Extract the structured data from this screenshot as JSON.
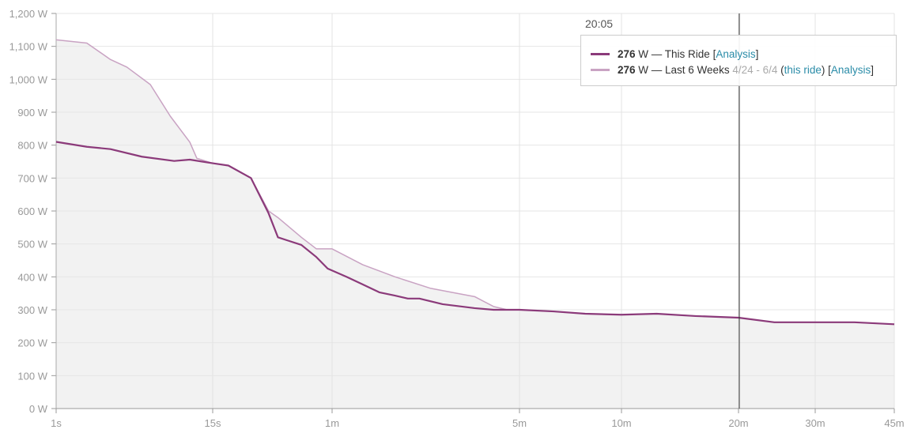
{
  "chart_data": {
    "type": "line",
    "x_scale": "log-ish (time)",
    "x_ticks": [
      {
        "label": "1s",
        "t": 1
      },
      {
        "label": "15s",
        "t": 15
      },
      {
        "label": "1m",
        "t": 60
      },
      {
        "label": "5m",
        "t": 300
      },
      {
        "label": "10m",
        "t": 600
      },
      {
        "label": "20m",
        "t": 1200
      },
      {
        "label": "30m",
        "t": 1800
      },
      {
        "label": "45m",
        "t": 2700
      }
    ],
    "y_ticks": [
      {
        "label": "0 W",
        "v": 0
      },
      {
        "label": "100 W",
        "v": 100
      },
      {
        "label": "200 W",
        "v": 200
      },
      {
        "label": "300 W",
        "v": 300
      },
      {
        "label": "400 W",
        "v": 400
      },
      {
        "label": "500 W",
        "v": 500
      },
      {
        "label": "600 W",
        "v": 600
      },
      {
        "label": "700 W",
        "v": 700
      },
      {
        "label": "800 W",
        "v": 800
      },
      {
        "label": "900 W",
        "v": 900
      },
      {
        "label": "1,000 W",
        "v": 1000
      },
      {
        "label": "1,100 W",
        "v": 1100
      },
      {
        "label": "1,200 W",
        "v": 1200
      }
    ],
    "ylim": [
      0,
      1200
    ],
    "xlim": [
      1,
      2700
    ],
    "crosshair": {
      "t": 1205,
      "label": "20:05"
    },
    "series": [
      {
        "name": "This Ride",
        "color": "#8b3a7a",
        "points": [
          [
            1,
            810
          ],
          [
            1.7,
            795
          ],
          [
            2.56,
            788
          ],
          [
            4.4,
            765
          ],
          [
            7.7,
            752
          ],
          [
            10.1,
            756
          ],
          [
            15,
            745
          ],
          [
            18,
            738
          ],
          [
            23.4,
            700
          ],
          [
            28.7,
            593
          ],
          [
            32,
            520
          ],
          [
            36,
            510
          ],
          [
            42,
            497
          ],
          [
            50,
            460
          ],
          [
            57,
            425
          ],
          [
            68,
            400
          ],
          [
            78,
            377
          ],
          [
            90,
            353
          ],
          [
            103,
            343
          ],
          [
            115,
            334
          ],
          [
            127,
            334
          ],
          [
            155,
            317
          ],
          [
            204,
            305
          ],
          [
            240,
            300
          ],
          [
            300,
            300
          ],
          [
            378,
            295
          ],
          [
            469,
            288
          ],
          [
            600,
            285
          ],
          [
            739,
            288
          ],
          [
            930,
            281
          ],
          [
            1200,
            276
          ],
          [
            1450,
            262
          ],
          [
            1800,
            262
          ],
          [
            2200,
            262
          ],
          [
            2700,
            256
          ]
        ]
      },
      {
        "name": "Last 6 Weeks",
        "color": "#c9a3c3",
        "points": [
          [
            1,
            1120
          ],
          [
            1.7,
            1110
          ],
          [
            2.56,
            1060
          ],
          [
            3.4,
            1037
          ],
          [
            5.1,
            984
          ],
          [
            7.2,
            888
          ],
          [
            10.1,
            809
          ],
          [
            11.4,
            760
          ],
          [
            15,
            745
          ],
          [
            18,
            738
          ],
          [
            23.4,
            700
          ],
          [
            28.7,
            600
          ],
          [
            32,
            580
          ],
          [
            42,
            520
          ],
          [
            50,
            485
          ],
          [
            60,
            485
          ],
          [
            78,
            437
          ],
          [
            103,
            400
          ],
          [
            140,
            365
          ],
          [
            175,
            350
          ],
          [
            204,
            340
          ],
          [
            240,
            310
          ],
          [
            270,
            300
          ],
          [
            300,
            300
          ],
          [
            378,
            295
          ],
          [
            469,
            288
          ],
          [
            600,
            285
          ],
          [
            739,
            288
          ],
          [
            930,
            281
          ],
          [
            1200,
            276
          ],
          [
            1450,
            262
          ],
          [
            1800,
            262
          ],
          [
            2200,
            262
          ],
          [
            2700,
            256
          ]
        ]
      }
    ]
  },
  "legend": {
    "crosshair_label": "20:05",
    "row1": {
      "value": "276",
      "unit": " W — This Ride ",
      "open": "[",
      "link": "Analysis",
      "close": "]"
    },
    "row2": {
      "value": "276",
      "unit": " W — Last 6 Weeks ",
      "range": "4/24 - 6/4",
      "open_paren": " (",
      "this_ride": "this ride",
      "close_paren": ") ",
      "open": "[",
      "link": "Analysis",
      "close": "]"
    }
  }
}
